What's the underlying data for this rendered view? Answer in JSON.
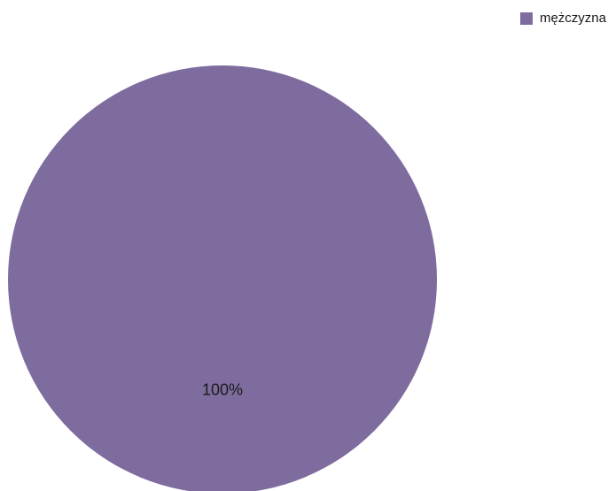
{
  "chart_data": {
    "type": "pie",
    "title": "",
    "categories": [
      "mężczyzna"
    ],
    "values": [
      100
    ],
    "labels": [
      "100%"
    ],
    "colors": [
      "#7e6c9e"
    ],
    "legend_position": "top-right"
  }
}
